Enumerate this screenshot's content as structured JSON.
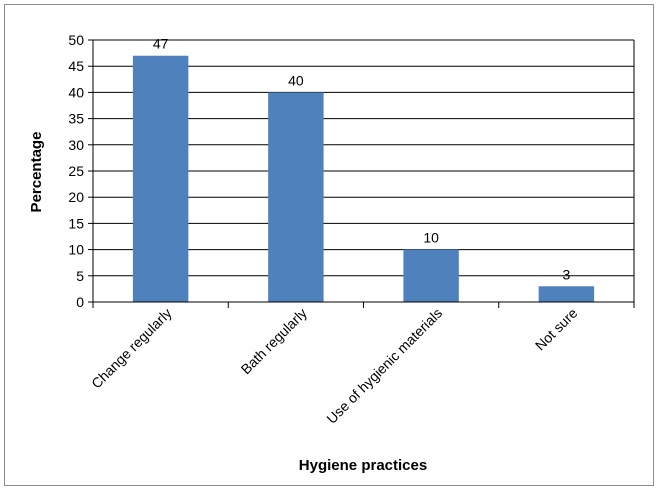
{
  "chart_data": {
    "type": "bar",
    "title": "",
    "xlabel": "Hygiene practices",
    "ylabel": "Percentage",
    "categories": [
      "Change regularly",
      "Bath regularly",
      "Use of hygienic materials",
      "Not sure"
    ],
    "values": [
      47,
      40,
      10,
      3
    ],
    "data_labels": [
      "47",
      "40",
      "10",
      "3"
    ],
    "ylim": [
      0,
      50
    ],
    "yticks": [
      "0",
      "5",
      "10",
      "15",
      "20",
      "25",
      "30",
      "35",
      "40",
      "45",
      "50"
    ],
    "grid": true,
    "legend": "none",
    "bar_color": "#4f81bd"
  }
}
